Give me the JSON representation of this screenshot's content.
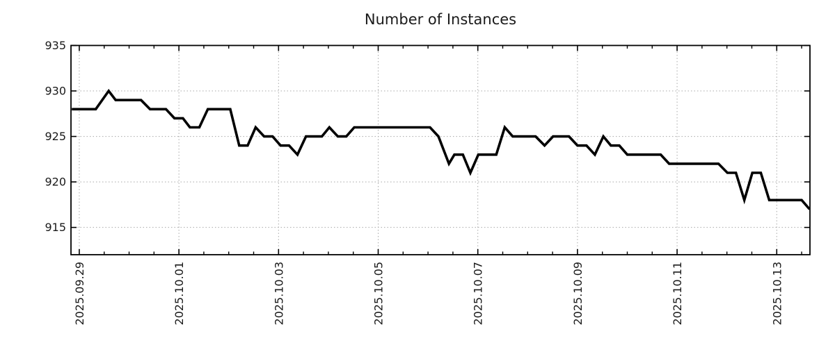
{
  "chart_data": {
    "type": "line",
    "title": "Number of Instances",
    "series": [
      {
        "name": "instances",
        "color": "#000000",
        "points": [
          [
            -0.15,
            928
          ],
          [
            0.33,
            928
          ],
          [
            0.59,
            930
          ],
          [
            0.73,
            929
          ],
          [
            1.24,
            929
          ],
          [
            1.42,
            928
          ],
          [
            1.74,
            928
          ],
          [
            1.91,
            927
          ],
          [
            2.08,
            927
          ],
          [
            2.22,
            926
          ],
          [
            2.41,
            926
          ],
          [
            2.58,
            928
          ],
          [
            3.03,
            928
          ],
          [
            3.21,
            924
          ],
          [
            3.38,
            924
          ],
          [
            3.54,
            926
          ],
          [
            3.71,
            925
          ],
          [
            3.88,
            925
          ],
          [
            4.04,
            924
          ],
          [
            4.21,
            924
          ],
          [
            4.38,
            923
          ],
          [
            4.55,
            925
          ],
          [
            4.87,
            925
          ],
          [
            5.02,
            926
          ],
          [
            5.19,
            925
          ],
          [
            5.36,
            925
          ],
          [
            5.52,
            926
          ],
          [
            7.04,
            926
          ],
          [
            7.21,
            925
          ],
          [
            7.42,
            922
          ],
          [
            7.53,
            923
          ],
          [
            7.7,
            923
          ],
          [
            7.85,
            921
          ],
          [
            8.01,
            923
          ],
          [
            8.37,
            923
          ],
          [
            8.54,
            926
          ],
          [
            8.7,
            925
          ],
          [
            9.16,
            925
          ],
          [
            9.34,
            924
          ],
          [
            9.51,
            925
          ],
          [
            9.83,
            925
          ],
          [
            10.0,
            924
          ],
          [
            10.18,
            924
          ],
          [
            10.35,
            923
          ],
          [
            10.52,
            925
          ],
          [
            10.67,
            924
          ],
          [
            10.84,
            924
          ],
          [
            11.0,
            923
          ],
          [
            11.67,
            923
          ],
          [
            11.84,
            922
          ],
          [
            12.83,
            922
          ],
          [
            13.01,
            921
          ],
          [
            13.18,
            921
          ],
          [
            13.35,
            918
          ],
          [
            13.51,
            921
          ],
          [
            13.68,
            921
          ],
          [
            13.85,
            918
          ],
          [
            14.5,
            918
          ],
          [
            14.66,
            917
          ]
        ]
      }
    ],
    "x_axis": {
      "major_ticks": [
        {
          "t": 0,
          "label": "2025.09.29"
        },
        {
          "t": 2,
          "label": "2025.10.01"
        },
        {
          "t": 4,
          "label": "2025.10.03"
        },
        {
          "t": 6,
          "label": "2025.10.05"
        },
        {
          "t": 8,
          "label": "2025.10.07"
        },
        {
          "t": 10,
          "label": "2025.10.09"
        },
        {
          "t": 12,
          "label": "2025.10.11"
        },
        {
          "t": 14,
          "label": "2025.10.13"
        }
      ],
      "minor_tick_interval": 0.5,
      "unit": "days"
    },
    "y_axis": {
      "major_ticks": [
        915,
        920,
        925,
        930,
        935
      ]
    },
    "xlim": [
      -0.1667,
      14.6667
    ],
    "ylim": [
      912,
      935
    ],
    "grid": true,
    "legend": null,
    "colors": {
      "line": "#000000",
      "grid": "#a8a8a8",
      "frame": "#000000",
      "text": "#1a1a1a",
      "background": "#ffffff"
    }
  }
}
